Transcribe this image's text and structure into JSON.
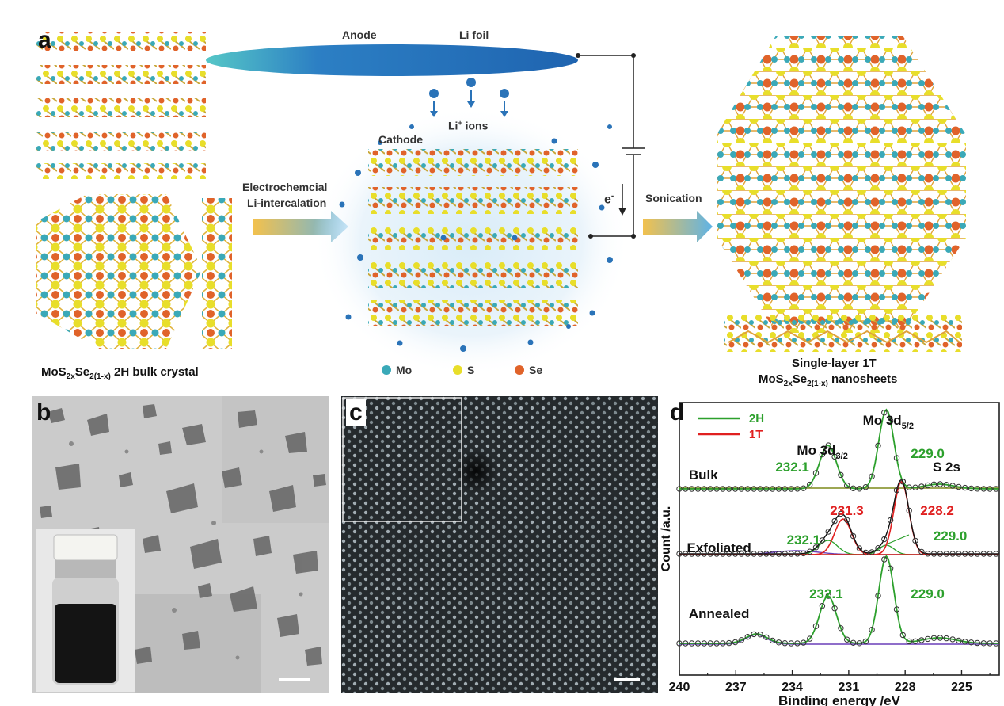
{
  "panel_a": {
    "label": "a",
    "anode_label": "Anode",
    "foil_label": "Li foil",
    "cathode_label": "Cathode",
    "ion_label": "Li",
    "ion_sup": "+",
    "ion_suffix": " ions",
    "step1_line1": "Electrochemcial",
    "step1_line2": "Li-intercalation",
    "step2": "Sonication",
    "electron": "e",
    "electron_sup": "-",
    "legend": [
      {
        "name": "Mo",
        "color": "#3aa9b8"
      },
      {
        "name": "S",
        "color": "#e8de2a"
      },
      {
        "name": "Se",
        "color": "#e0632a"
      }
    ],
    "left_caption": {
      "pre": "MoS",
      "s1": "2x",
      "mid": "Se",
      "s2": "2(1-x)",
      "post": " 2H bulk crystal"
    },
    "right_caption_line1": "Single-layer 1T",
    "right_caption_line2": {
      "pre": "MoS",
      "s1": "2x",
      "mid": "Se",
      "s2": "2(1-x)",
      "post": " nanosheets"
    }
  },
  "panel_b": {
    "label": "b"
  },
  "panel_c": {
    "label": "c"
  },
  "panel_d": {
    "label": "d",
    "legend": [
      {
        "name": "2H",
        "color": "#2ca02c"
      },
      {
        "name": "1T",
        "color": "#e02020"
      }
    ],
    "peak_mo52": {
      "pre": "Mo 3d",
      "sub": "5/2"
    },
    "peak_mo32": {
      "pre": "Mo 3d",
      "sub": "3/2"
    },
    "peak_s2s": "S 2s",
    "annotations": [
      {
        "text": "229.0",
        "color": "#2ca02c"
      },
      {
        "text": "232.1",
        "color": "#2ca02c"
      },
      {
        "text": "231.3",
        "color": "#e02020"
      },
      {
        "text": "228.2",
        "color": "#e02020"
      },
      {
        "text": "232.1",
        "color": "#2ca02c"
      },
      {
        "text": "229.0",
        "color": "#2ca02c"
      },
      {
        "text": "232.1",
        "color": "#2ca02c"
      },
      {
        "text": "229.0",
        "color": "#2ca02c"
      }
    ],
    "sample_labels": [
      "Bulk",
      "Exfoliated",
      "Annealed"
    ]
  },
  "chart_data": {
    "type": "line",
    "xlabel": "Binding energy /eV",
    "ylabel": "Count /a.u.",
    "xlim": [
      240,
      223
    ],
    "x_reversed": true,
    "xticks": [
      240,
      237,
      234,
      231,
      228,
      225
    ],
    "series": [
      {
        "name": "Bulk",
        "peaks_eV": [
          232.1,
          229.0,
          226.2
        ]
      },
      {
        "name": "Exfoliated",
        "peaks_eV": [
          232.1,
          231.3,
          229.0,
          228.2
        ]
      },
      {
        "name": "Annealed",
        "peaks_eV": [
          235.9,
          232.1,
          229.0,
          226.2
        ]
      }
    ]
  }
}
